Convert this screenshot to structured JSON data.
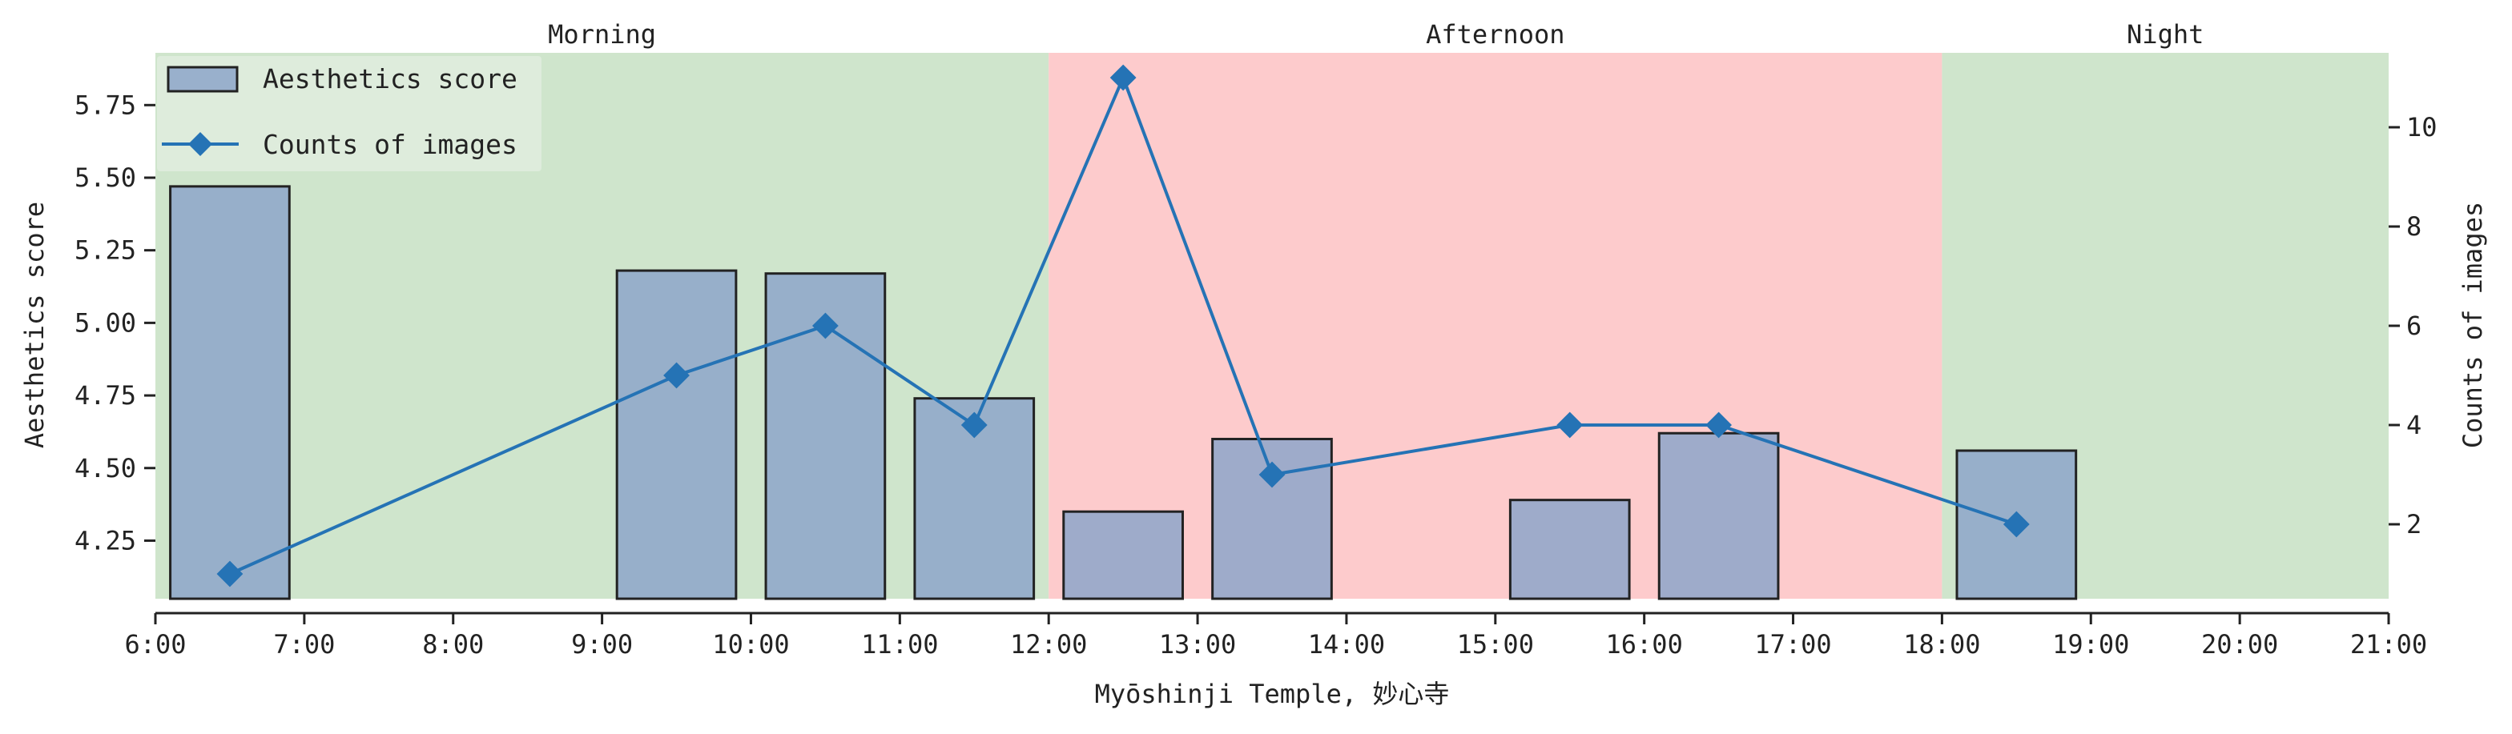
{
  "chart_data": {
    "type": "bar+line",
    "xlabel": "Myōshinji Temple, 妙心寺",
    "ylabel_left": "Aesthetics score",
    "ylabel_right": "Counts of images",
    "x_ticks": [
      "6:00",
      "7:00",
      "8:00",
      "9:00",
      "10:00",
      "11:00",
      "12:00",
      "13:00",
      "14:00",
      "15:00",
      "16:00",
      "17:00",
      "18:00",
      "19:00",
      "20:00",
      "21:00"
    ],
    "x_range_hours": [
      6,
      21
    ],
    "y_left_ticks": [
      "4.25",
      "4.50",
      "4.75",
      "5.00",
      "5.25",
      "5.50",
      "5.75"
    ],
    "y_left_range": [
      4.05,
      5.93
    ],
    "y_right_ticks": [
      "2",
      "4",
      "6",
      "8",
      "10"
    ],
    "y_right_range": [
      0.5,
      11.5
    ],
    "periods": [
      {
        "label": "Morning",
        "start": 6,
        "end": 12,
        "color": "#cfe5cc"
      },
      {
        "label": "Afternoon",
        "start": 12,
        "end": 18,
        "color": "#fdcbcc"
      },
      {
        "label": "Night",
        "start": 18,
        "end": 21,
        "color": "#cfe5cc"
      }
    ],
    "series": [
      {
        "name": "Aesthetics score",
        "type": "bar",
        "axis": "left",
        "x": [
          6.5,
          9.5,
          10.5,
          11.5,
          12.5,
          13.5,
          15.5,
          16.5,
          18.5
        ],
        "values": [
          5.47,
          5.18,
          5.17,
          4.74,
          4.35,
          4.6,
          4.39,
          4.62,
          4.56
        ],
        "color": "#8da6c9"
      },
      {
        "name": "Counts of images",
        "type": "line",
        "axis": "right",
        "marker": "diamond",
        "x": [
          6.5,
          9.5,
          10.5,
          11.5,
          12.5,
          13.5,
          15.5,
          16.5,
          18.5
        ],
        "values": [
          1,
          5,
          6,
          4,
          11,
          3,
          4,
          4,
          2
        ],
        "color": "#2573b5"
      }
    ],
    "legend": {
      "position": "top-left",
      "items": [
        "Aesthetics score",
        "Counts of images"
      ]
    },
    "grid": false
  }
}
